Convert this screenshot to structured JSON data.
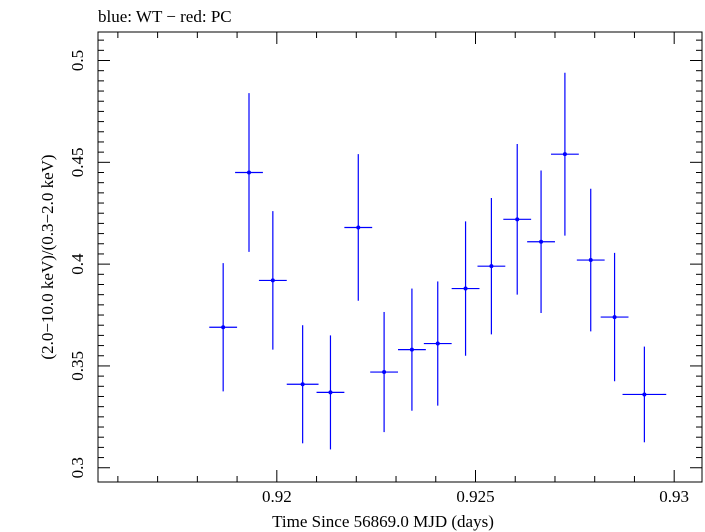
{
  "chart_data": {
    "type": "scatter",
    "title": "blue: WT − red: PC",
    "xlabel": "Time Since 56869.0 MJD (days)",
    "ylabel": "(2.0−10.0 keV)/(0.3−2.0 keV)",
    "xlim": [
      0.9155,
      0.9307
    ],
    "ylim": [
      0.293,
      0.514
    ],
    "x_ticks": [
      0.92,
      0.925,
      0.93
    ],
    "x_tick_labels": [
      "0.92",
      "0.925",
      "0.93"
    ],
    "y_ticks": [
      0.3,
      0.35,
      0.4,
      0.45,
      0.5
    ],
    "y_tick_labels": [
      "0.3",
      "0.35",
      "0.4",
      "0.45",
      "0.5"
    ],
    "grid": false,
    "series": [
      {
        "color": "#0000ff",
        "points": [
          {
            "x": 0.91865,
            "xerr": 0.00035,
            "y": 0.369,
            "yerr": 0.0315
          },
          {
            "x": 0.9193,
            "xerr": 0.00035,
            "y": 0.445,
            "yerr": 0.039
          },
          {
            "x": 0.9199,
            "xerr": 0.00035,
            "y": 0.392,
            "yerr": 0.034
          },
          {
            "x": 0.92065,
            "xerr": 0.0004,
            "y": 0.341,
            "yerr": 0.029
          },
          {
            "x": 0.92135,
            "xerr": 0.00035,
            "y": 0.337,
            "yerr": 0.028
          },
          {
            "x": 0.92205,
            "xerr": 0.00035,
            "y": 0.418,
            "yerr": 0.036
          },
          {
            "x": 0.9227,
            "xerr": 0.00035,
            "y": 0.347,
            "yerr": 0.0295
          },
          {
            "x": 0.9234,
            "xerr": 0.00035,
            "y": 0.358,
            "yerr": 0.03
          },
          {
            "x": 0.92405,
            "xerr": 0.00035,
            "y": 0.361,
            "yerr": 0.0305
          },
          {
            "x": 0.92475,
            "xerr": 0.00035,
            "y": 0.388,
            "yerr": 0.033
          },
          {
            "x": 0.9254,
            "xerr": 0.00035,
            "y": 0.399,
            "yerr": 0.0335
          },
          {
            "x": 0.92605,
            "xerr": 0.00035,
            "y": 0.422,
            "yerr": 0.037
          },
          {
            "x": 0.92665,
            "xerr": 0.00035,
            "y": 0.411,
            "yerr": 0.035
          },
          {
            "x": 0.92725,
            "xerr": 0.00035,
            "y": 0.454,
            "yerr": 0.04
          },
          {
            "x": 0.9279,
            "xerr": 0.00035,
            "y": 0.402,
            "yerr": 0.035
          },
          {
            "x": 0.9285,
            "xerr": 0.00035,
            "y": 0.374,
            "yerr": 0.0315
          },
          {
            "x": 0.92925,
            "xerr": 0.00055,
            "y": 0.336,
            "yerr": 0.0235
          }
        ]
      }
    ]
  }
}
